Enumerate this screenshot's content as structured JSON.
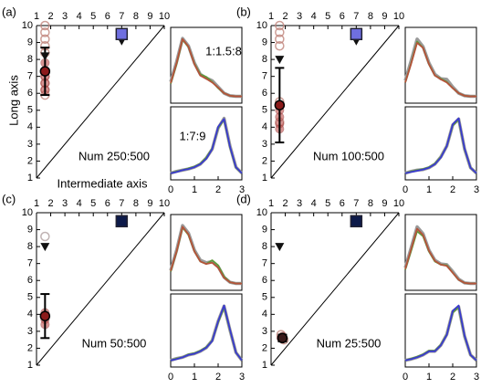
{
  "chart_data": [
    {
      "type": "scatter",
      "panel": "(a)",
      "annotation": "Num 250:500",
      "ylabel": "Long axis",
      "xlabel": "Intermediate axis",
      "xlim": [
        1,
        10
      ],
      "ylim": [
        1,
        10
      ],
      "xticks": [
        1,
        2,
        3,
        4,
        5,
        6,
        7,
        8,
        9,
        10
      ],
      "yticks": [
        1,
        2,
        3,
        4,
        5,
        6,
        7,
        8,
        9,
        10
      ],
      "points": {
        "color": "#c0857c",
        "x": [
          1.6,
          1.6,
          1.6,
          1.6,
          1.6,
          1.6,
          1.6,
          1.6,
          1.6
        ],
        "y": [
          10,
          9.6,
          9.2,
          8.8,
          8.4,
          7.0,
          6.6,
          6.2,
          5.9
        ]
      },
      "filled": {
        "color": "#c0504d",
        "x": [
          1.6,
          1.6,
          1.6,
          1.6
        ],
        "y": [
          7.8,
          7.0,
          6.6,
          6.2
        ]
      },
      "mean": {
        "color": "#8b1a1a",
        "x": 1.6,
        "y": 7.3,
        "error": 1.4
      },
      "triangles": {
        "x": [
          1.6,
          7
        ],
        "y": [
          8.2,
          9.1
        ]
      },
      "square": {
        "color": "#6f6fe0",
        "x": 7,
        "y": 9.5
      },
      "insets": [
        {
          "type": "line",
          "annotation": "1:1.5:8",
          "xlim": [
            0,
            3
          ],
          "ylim": [
            0,
            1
          ],
          "x": [
            0,
            0.25,
            0.5,
            0.75,
            1,
            1.25,
            1.5,
            1.75,
            2,
            2.25,
            2.5,
            2.75,
            3
          ],
          "series": [
            {
              "color": "#9a9a9a",
              "values": [
                0.28,
                0.6,
                0.97,
                0.85,
                0.58,
                0.4,
                0.34,
                0.3,
                0.2,
                0.1,
                0.06,
                0.05,
                0.05
              ]
            },
            {
              "color": "#5e9a3a",
              "values": [
                0.25,
                0.56,
                0.95,
                0.83,
                0.57,
                0.4,
                0.36,
                0.28,
                0.18,
                0.1,
                0.06,
                0.05,
                0.05
              ]
            },
            {
              "color": "#b5533a",
              "values": [
                0.26,
                0.58,
                0.96,
                0.84,
                0.56,
                0.38,
                0.33,
                0.27,
                0.19,
                0.1,
                0.06,
                0.05,
                0.05
              ]
            }
          ]
        },
        {
          "type": "line",
          "annotation": "1:7:9",
          "xlim": [
            0,
            3
          ],
          "ylim": [
            0,
            1
          ],
          "xticks": [
            0,
            1,
            2,
            3
          ],
          "x": [
            0,
            0.25,
            0.5,
            0.75,
            1,
            1.25,
            1.5,
            1.75,
            2,
            2.25,
            2.5,
            2.75,
            3
          ],
          "series": [
            {
              "color": "#9a9a9a",
              "values": [
                0.05,
                0.08,
                0.1,
                0.12,
                0.15,
                0.2,
                0.3,
                0.45,
                0.8,
                0.96,
                0.5,
                0.15,
                0.05
              ]
            },
            {
              "color": "#5e9a3a",
              "values": [
                0.05,
                0.08,
                0.1,
                0.13,
                0.16,
                0.21,
                0.31,
                0.46,
                0.8,
                0.94,
                0.48,
                0.14,
                0.05
              ]
            },
            {
              "color": "#3a3ad0",
              "values": [
                0.05,
                0.07,
                0.1,
                0.12,
                0.15,
                0.2,
                0.29,
                0.45,
                0.82,
                0.95,
                0.49,
                0.15,
                0.05
              ]
            }
          ]
        }
      ]
    },
    {
      "type": "scatter",
      "panel": "(b)",
      "annotation": "Num 100:500",
      "xlim": [
        1,
        10
      ],
      "ylim": [
        1,
        10
      ],
      "xticks": [
        1,
        2,
        3,
        4,
        5,
        6,
        7,
        8,
        9,
        10
      ],
      "yticks": [
        1,
        2,
        3,
        4,
        5,
        6,
        7,
        8,
        9,
        10
      ],
      "points": {
        "color": "#c0857c",
        "x": [
          1.6,
          1.6,
          1.6,
          1.6,
          1.6,
          1.6
        ],
        "y": [
          10,
          9.6,
          9.2,
          8.8,
          5.5,
          4.3
        ]
      },
      "filled": {
        "color": "#c0504d",
        "x": [
          1.6,
          1.6,
          1.6,
          1.6
        ],
        "y": [
          5.0,
          4.6,
          4.2,
          3.9
        ]
      },
      "mean": {
        "color": "#8b1a1a",
        "x": 1.6,
        "y": 5.3,
        "error": 2.2
      },
      "triangles": {
        "x": [
          1.6,
          7
        ],
        "y": [
          8.0,
          9.1
        ]
      },
      "square": {
        "color": "#6f6fe0",
        "x": 7,
        "y": 9.5
      },
      "insets": [
        {
          "type": "line",
          "xlim": [
            0,
            3
          ],
          "ylim": [
            0,
            1
          ],
          "x": [
            0,
            0.25,
            0.5,
            0.75,
            1,
            1.25,
            1.5,
            1.75,
            2,
            2.25,
            2.5,
            2.75,
            3
          ],
          "series": [
            {
              "color": "#9a9a9a",
              "values": [
                0.3,
                0.62,
                0.96,
                0.84,
                0.58,
                0.4,
                0.33,
                0.32,
                0.2,
                0.1,
                0.06,
                0.05,
                0.05
              ]
            },
            {
              "color": "#5e9a3a",
              "values": [
                0.27,
                0.58,
                0.92,
                0.82,
                0.56,
                0.38,
                0.33,
                0.28,
                0.18,
                0.1,
                0.06,
                0.05,
                0.05
              ]
            },
            {
              "color": "#b5533a",
              "values": [
                0.27,
                0.57,
                0.9,
                0.82,
                0.56,
                0.38,
                0.32,
                0.27,
                0.18,
                0.1,
                0.06,
                0.05,
                0.05
              ]
            }
          ]
        },
        {
          "type": "line",
          "xlim": [
            0,
            3
          ],
          "ylim": [
            0,
            1
          ],
          "xticks": [
            0,
            1,
            2,
            3
          ],
          "x": [
            0,
            0.25,
            0.5,
            0.75,
            1,
            1.25,
            1.5,
            1.75,
            2,
            2.25,
            2.5,
            2.75,
            3
          ],
          "series": [
            {
              "color": "#9a9a9a",
              "values": [
                0.05,
                0.08,
                0.1,
                0.11,
                0.14,
                0.2,
                0.32,
                0.5,
                0.85,
                0.95,
                0.45,
                0.14,
                0.05
              ]
            },
            {
              "color": "#5e9a3a",
              "values": [
                0.05,
                0.08,
                0.1,
                0.12,
                0.15,
                0.21,
                0.32,
                0.5,
                0.84,
                0.94,
                0.45,
                0.14,
                0.05
              ]
            },
            {
              "color": "#3a3ad0",
              "values": [
                0.05,
                0.07,
                0.09,
                0.11,
                0.14,
                0.2,
                0.31,
                0.5,
                0.86,
                0.96,
                0.46,
                0.14,
                0.05
              ]
            }
          ]
        }
      ]
    },
    {
      "type": "scatter",
      "panel": "(c)",
      "annotation": "Num 50:500",
      "xlim": [
        1,
        10
      ],
      "ylim": [
        1,
        10
      ],
      "xticks": [
        1,
        2,
        3,
        4,
        5,
        6,
        7,
        8,
        9,
        10
      ],
      "yticks": [
        1,
        2,
        3,
        4,
        5,
        6,
        7,
        8,
        9,
        10
      ],
      "points": {
        "color": "#b0a0a0",
        "x": [
          1.6
        ],
        "y": [
          8.6
        ]
      },
      "filled": {
        "color": "#c0504d",
        "x": [
          1.6,
          1.6,
          1.6
        ],
        "y": [
          4.1,
          3.7,
          3.4
        ]
      },
      "mean": {
        "color": "#8b1a1a",
        "x": 1.6,
        "y": 3.9,
        "error": 1.3
      },
      "triangles": {
        "x": [
          1.6
        ],
        "y": [
          8.0
        ]
      },
      "square": {
        "color": "#0d1a4a",
        "x": 7,
        "y": 9.5
      },
      "insets": [
        {
          "type": "line",
          "xlim": [
            0,
            3
          ],
          "ylim": [
            0,
            1
          ],
          "x": [
            0,
            0.25,
            0.5,
            0.75,
            1,
            1.25,
            1.5,
            1.75,
            2,
            2.25,
            2.5,
            2.75,
            3
          ],
          "series": [
            {
              "color": "#9a9a9a",
              "values": [
                0.26,
                0.58,
                0.97,
                0.85,
                0.58,
                0.42,
                0.38,
                0.4,
                0.32,
                0.15,
                0.07,
                0.05,
                0.05
              ]
            },
            {
              "color": "#5e9a3a",
              "values": [
                0.24,
                0.55,
                0.94,
                0.82,
                0.56,
                0.4,
                0.36,
                0.42,
                0.34,
                0.16,
                0.07,
                0.05,
                0.05
              ]
            },
            {
              "color": "#b5533a",
              "values": [
                0.25,
                0.56,
                0.95,
                0.83,
                0.56,
                0.4,
                0.36,
                0.38,
                0.3,
                0.14,
                0.07,
                0.05,
                0.05
              ]
            }
          ]
        },
        {
          "type": "line",
          "xlim": [
            0,
            3
          ],
          "ylim": [
            0,
            1
          ],
          "xticks": [
            0,
            1,
            2,
            3
          ],
          "x": [
            0,
            0.25,
            0.5,
            0.75,
            1,
            1.25,
            1.5,
            1.75,
            2,
            2.25,
            2.5,
            2.75,
            3
          ],
          "series": [
            {
              "color": "#9a9a9a",
              "values": [
                0.05,
                0.08,
                0.1,
                0.14,
                0.16,
                0.2,
                0.26,
                0.38,
                0.7,
                0.95,
                0.55,
                0.18,
                0.05
              ]
            },
            {
              "color": "#5e9a3a",
              "values": [
                0.05,
                0.08,
                0.1,
                0.15,
                0.17,
                0.21,
                0.27,
                0.38,
                0.68,
                0.93,
                0.55,
                0.18,
                0.05
              ]
            },
            {
              "color": "#3a3ad0",
              "values": [
                0.05,
                0.07,
                0.1,
                0.14,
                0.16,
                0.2,
                0.26,
                0.37,
                0.7,
                0.96,
                0.56,
                0.18,
                0.05
              ]
            }
          ]
        }
      ]
    },
    {
      "type": "scatter",
      "panel": "(d)",
      "annotation": "Num 25:500",
      "xlim": [
        1,
        10
      ],
      "ylim": [
        1,
        10
      ],
      "xticks": [
        1,
        2,
        3,
        4,
        5,
        6,
        7,
        8,
        9,
        10
      ],
      "yticks": [
        1,
        2,
        3,
        4,
        5,
        6,
        7,
        8,
        9,
        10
      ],
      "points": {
        "color": "#c0857c",
        "x": [
          1.7,
          1.9
        ],
        "y": [
          2.8,
          2.5
        ]
      },
      "filled": {
        "color": "#c0504d",
        "x": [
          1.8,
          1.7
        ],
        "y": [
          2.7,
          2.6
        ]
      },
      "mean": {
        "color": "#3a1a1a",
        "x": 1.8,
        "y": 2.6,
        "error": 0.2
      },
      "triangles": {
        "x": [
          1.6
        ],
        "y": [
          8.0
        ]
      },
      "square": {
        "color": "#0d1a4a",
        "x": 7,
        "y": 9.5
      },
      "insets": [
        {
          "type": "line",
          "xlim": [
            0,
            3
          ],
          "ylim": [
            0,
            1
          ],
          "x": [
            0,
            0.25,
            0.5,
            0.75,
            1,
            1.25,
            1.5,
            1.75,
            2,
            2.25,
            2.5,
            2.75,
            3
          ],
          "series": [
            {
              "color": "#9a9a9a",
              "values": [
                0.3,
                0.62,
                0.95,
                0.84,
                0.58,
                0.42,
                0.36,
                0.35,
                0.24,
                0.12,
                0.06,
                0.05,
                0.05
              ]
            },
            {
              "color": "#5e9a3a",
              "values": [
                0.27,
                0.57,
                0.88,
                0.8,
                0.56,
                0.4,
                0.35,
                0.34,
                0.22,
                0.11,
                0.06,
                0.05,
                0.05
              ]
            },
            {
              "color": "#b5533a",
              "values": [
                0.28,
                0.6,
                0.92,
                0.82,
                0.57,
                0.41,
                0.35,
                0.33,
                0.22,
                0.11,
                0.06,
                0.05,
                0.05
              ]
            }
          ]
        },
        {
          "type": "line",
          "xlim": [
            0,
            3
          ],
          "ylim": [
            0,
            1
          ],
          "xticks": [
            0,
            1,
            2,
            3
          ],
          "x": [
            0,
            0.25,
            0.5,
            0.75,
            1,
            1.25,
            1.5,
            1.75,
            2,
            2.25,
            2.5,
            2.75,
            3
          ],
          "series": [
            {
              "color": "#9a9a9a",
              "values": [
                0.05,
                0.07,
                0.1,
                0.14,
                0.2,
                0.2,
                0.3,
                0.48,
                0.86,
                0.94,
                0.45,
                0.14,
                0.05
              ]
            },
            {
              "color": "#5e9a3a",
              "values": [
                0.05,
                0.08,
                0.11,
                0.15,
                0.21,
                0.21,
                0.31,
                0.48,
                0.84,
                0.93,
                0.45,
                0.14,
                0.05
              ]
            },
            {
              "color": "#3a3ad0",
              "values": [
                0.05,
                0.07,
                0.1,
                0.14,
                0.2,
                0.2,
                0.3,
                0.47,
                0.87,
                0.96,
                0.46,
                0.14,
                0.05
              ]
            }
          ]
        }
      ]
    }
  ]
}
